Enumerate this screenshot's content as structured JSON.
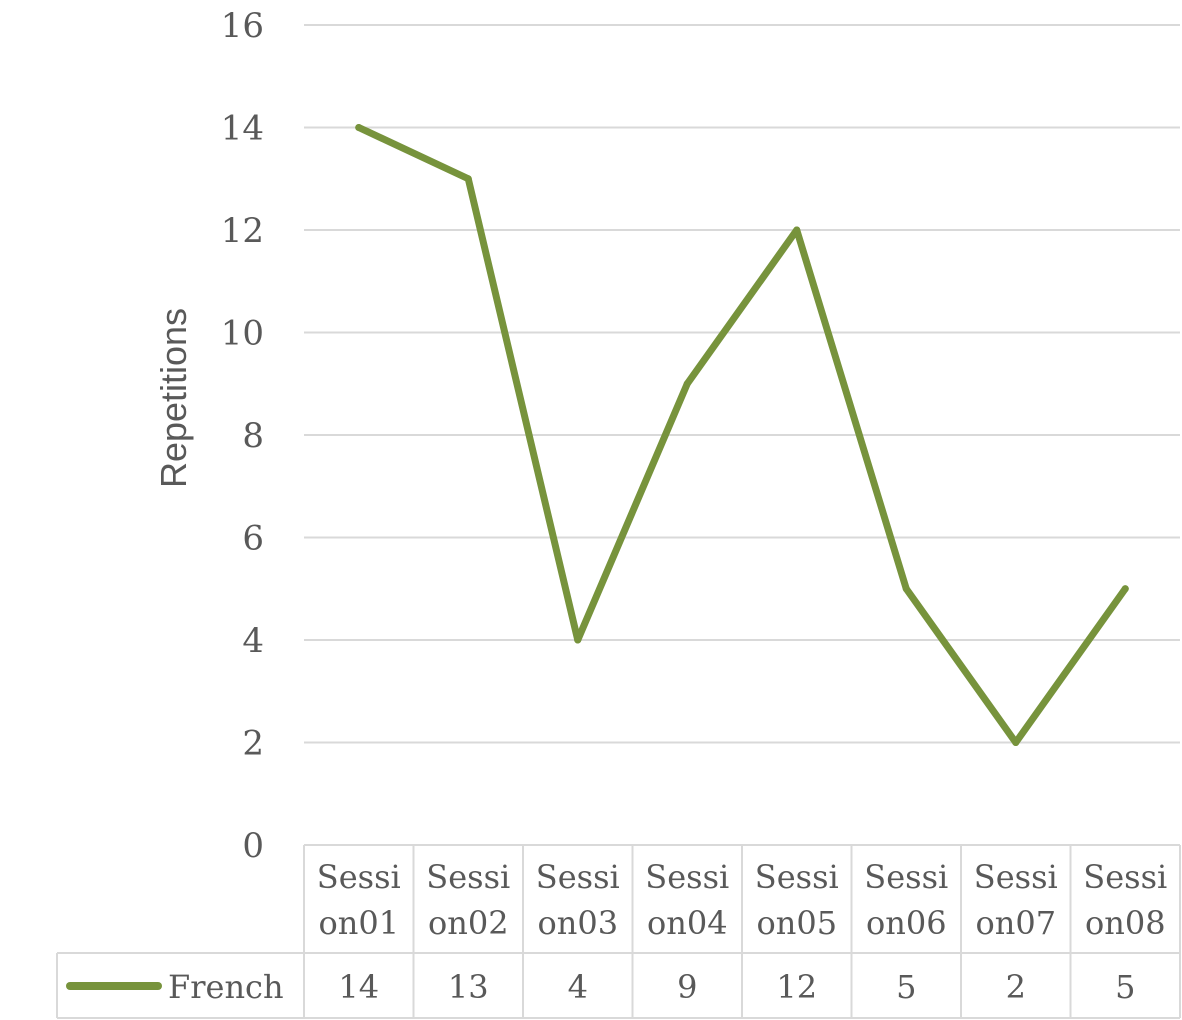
{
  "chart_data": {
    "type": "line",
    "title": "",
    "xlabel": "",
    "ylabel": "Repetitions",
    "ylim": [
      0,
      16
    ],
    "yticks": [
      0,
      2,
      4,
      6,
      8,
      10,
      12,
      14,
      16
    ],
    "grid": true,
    "legend": "data-table",
    "categories": [
      [
        "Sessi",
        "on01"
      ],
      [
        "Sessi",
        "on02"
      ],
      [
        "Sessi",
        "on03"
      ],
      [
        "Sessi",
        "on04"
      ],
      [
        "Sessi",
        "on05"
      ],
      [
        "Sessi",
        "on06"
      ],
      [
        "Sessi",
        "on07"
      ],
      [
        "Sessi",
        "on08"
      ]
    ],
    "series": [
      {
        "name": "French",
        "color": "#77933c",
        "values": [
          14,
          13,
          4,
          9,
          12,
          5,
          2,
          5
        ]
      }
    ]
  }
}
